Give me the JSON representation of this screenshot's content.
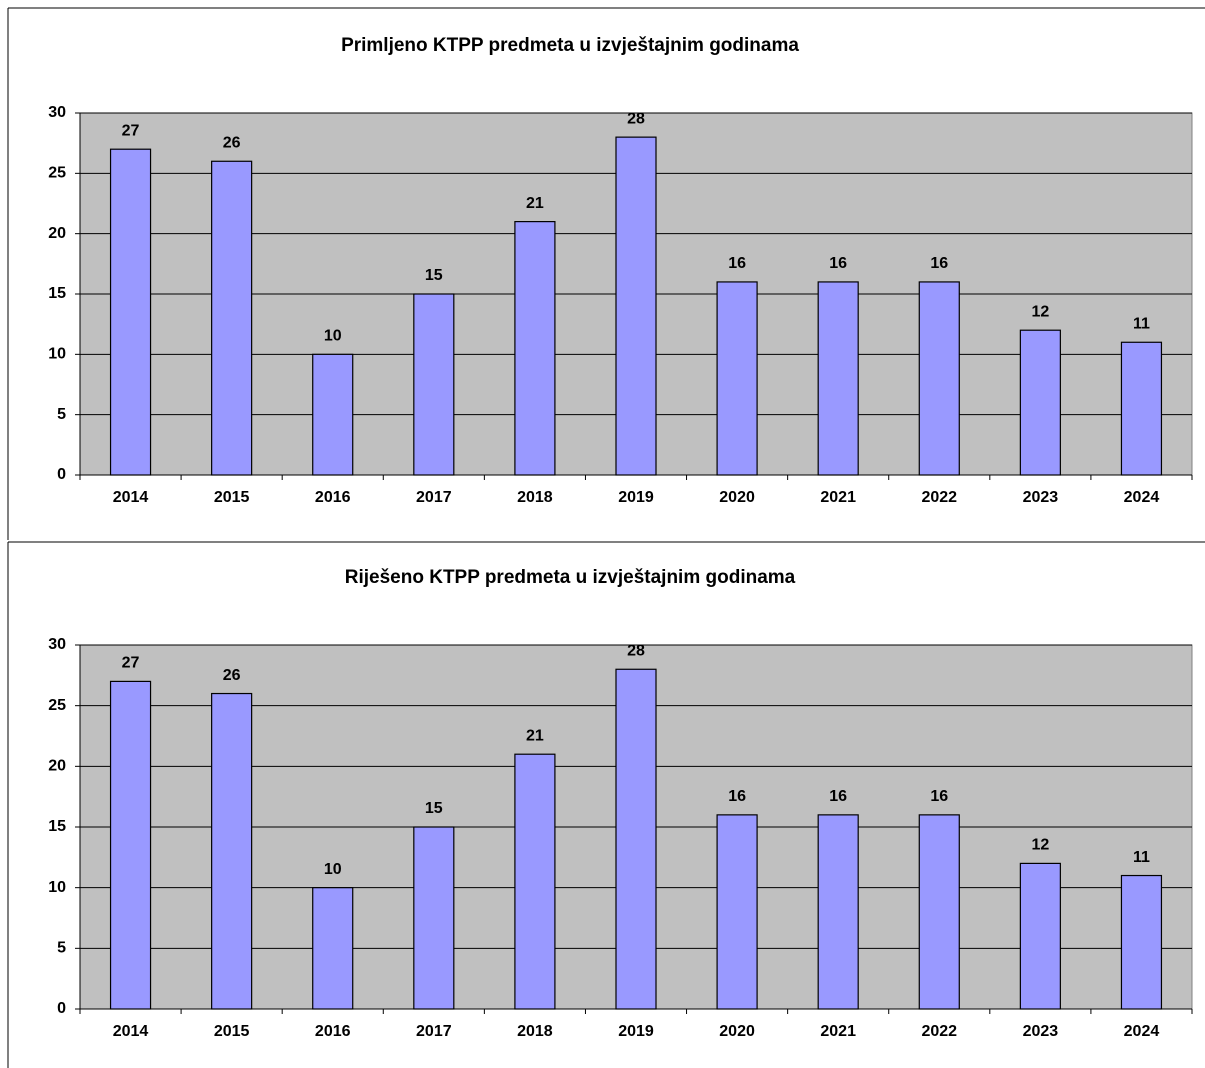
{
  "chart_data": [
    {
      "type": "bar",
      "title": "Primljeno KTPP predmeta u izvještajnim godinama",
      "categories": [
        "2014",
        "2015",
        "2016",
        "2017",
        "2018",
        "2019",
        "2020",
        "2021",
        "2022",
        "2023",
        "2024"
      ],
      "values": [
        27,
        26,
        10,
        15,
        21,
        28,
        16,
        16,
        16,
        12,
        11
      ],
      "color": "#9999ff",
      "ylim": [
        0,
        30
      ],
      "yticks": [
        0,
        5,
        10,
        15,
        20,
        25,
        30
      ],
      "grid": true
    },
    {
      "type": "bar",
      "title": "Riješeno KTPP predmeta u izvještajnim godinama",
      "categories": [
        "2014",
        "2015",
        "2016",
        "2017",
        "2018",
        "2019",
        "2020",
        "2021",
        "2022",
        "2023",
        "2024"
      ],
      "values": [
        27,
        26,
        10,
        15,
        21,
        28,
        16,
        16,
        16,
        12,
        11
      ],
      "color": "#9999ff",
      "ylim": [
        0,
        30
      ],
      "yticks": [
        0,
        5,
        10,
        15,
        20,
        25,
        30
      ],
      "grid": true
    }
  ]
}
